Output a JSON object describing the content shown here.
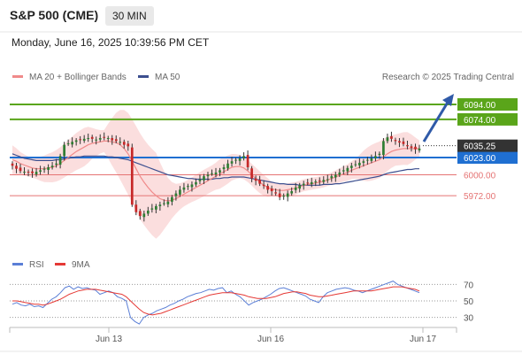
{
  "header": {
    "title": "S&P 500 (CME)",
    "interval": "30 MIN",
    "datetime": "Monday, June 16, 2025 10:39:56 PM CET"
  },
  "source": "Research © 2025 Trading Central",
  "colors": {
    "up_candle": "#2e7d32",
    "down_candle": "#c62828",
    "target_level": "#5aa51a",
    "pivot_level": "#1f6fd1",
    "support_level": "#e57373",
    "current_price_bg": "#333333",
    "ma20_bollinger": "#f08a8a",
    "ma50": "#3c4f8f",
    "rsi": "#5b7fd6",
    "rsi_ma": "#e53935",
    "arrow": "#2f5aa8"
  },
  "chart_data": [
    {
      "type": "candlestick",
      "legend": [
        {
          "name": "MA 20 + Bollinger Bands",
          "color": "#f08a8a"
        },
        {
          "name": "MA 50",
          "color": "#3c4f8f"
        }
      ],
      "legend_position": "top-left",
      "ylim": [
        5900,
        6120
      ],
      "x_ticks": [
        "Jun 13",
        "Jun 16",
        "Jun 17"
      ],
      "levels": [
        {
          "value": 6094.0,
          "label": "6094.00",
          "kind": "target"
        },
        {
          "value": 6074.0,
          "label": "6074.00",
          "kind": "target"
        },
        {
          "value": 6023.0,
          "label": "6023.00",
          "kind": "pivot"
        },
        {
          "value": 6000.0,
          "label": "6000.00",
          "kind": "support"
        },
        {
          "value": 5972.0,
          "label": "5972.00",
          "kind": "support"
        }
      ],
      "current_price": {
        "value": 6035.25,
        "label": "6035.25"
      },
      "close_series": [
        6012,
        6008,
        6005,
        6004,
        6003,
        6002,
        6004,
        6006,
        6008,
        6010,
        6012,
        6015,
        6025,
        6040,
        6042,
        6044,
        6046,
        6047,
        6048,
        6049,
        6048,
        6047,
        6049,
        6050,
        6049,
        6046,
        6045,
        6044,
        6040,
        6038,
        5960,
        5950,
        5945,
        5948,
        5952,
        5955,
        5958,
        5960,
        5962,
        5964,
        5970,
        5975,
        5980,
        5983,
        5985,
        5987,
        5990,
        5994,
        5998,
        6000,
        6002,
        6003,
        6006,
        6010,
        6015,
        6018,
        6020,
        6022,
        6025,
        6010,
        5995,
        5992,
        5988,
        5985,
        5980,
        5978,
        5975,
        5970,
        5972,
        5975,
        5978,
        5983,
        5986,
        5988,
        5989,
        5990,
        5991,
        5992,
        5993,
        5994,
        5998,
        6000,
        6003,
        6006,
        6009,
        6012,
        6014,
        6016,
        6018,
        6020,
        6022,
        6025,
        6028,
        6045,
        6050,
        6048,
        6045,
        6043,
        6041,
        6038,
        6036,
        6034,
        6035
      ],
      "ma20_series": [
        6020,
        6018,
        6015,
        6013,
        6011,
        6009,
        6008,
        6008,
        6008,
        6009,
        6010,
        6012,
        6015,
        6019,
        6023,
        6027,
        6031,
        6034,
        6037,
        6040,
        6042,
        6043,
        6044,
        6045,
        6045,
        6044,
        6043,
        6040,
        6035,
        6028,
        6018,
        6008,
        5998,
        5990,
        5983,
        5977,
        5972,
        5968,
        5966,
        5965,
        5966,
        5968,
        5971,
        5974,
        5977,
        5980,
        5983,
        5986,
        5989,
        5992,
        5995,
        5998,
        6001,
        6004,
        6007,
        6010,
        6011,
        6011,
        6009,
        6005,
        6000,
        5995,
        5990,
        5986,
        5983,
        5981,
        5980,
        5979,
        5979,
        5980,
        5981,
        5982,
        5984,
        5986,
        5987,
        5988,
        5989,
        5990,
        5991,
        5993,
        5995,
        5997,
        5999,
        6001,
        6003,
        6006,
        6008,
        6010,
        6012,
        6014,
        6016,
        6018,
        6020,
        6024,
        6028,
        6031,
        6033,
        6034,
        6035,
        6035,
        6035,
        6035,
        6035
      ],
      "ma50_series": [
        6028,
        6026,
        6024,
        6022,
        6021,
        6020,
        6019,
        6019,
        6019,
        6019,
        6019,
        6020,
        6020,
        6021,
        6022,
        6023,
        6024,
        6024,
        6025,
        6025,
        6025,
        6025,
        6025,
        6025,
        6024,
        6024,
        6023,
        6022,
        6021,
        6020,
        6018,
        6016,
        6014,
        6012,
        6010,
        6008,
        6006,
        6004,
        6002,
        6000,
        5999,
        5998,
        5997,
        5996,
        5995,
        5995,
        5994,
        5994,
        5994,
        5994,
        5994,
        5995,
        5995,
        5996,
        5996,
        5997,
        5997,
        5997,
        5997,
        5996,
        5995,
        5994,
        5993,
        5992,
        5991,
        5990,
        5989,
        5988,
        5988,
        5987,
        5987,
        5987,
        5986,
        5986,
        5986,
        5986,
        5986,
        5986,
        5987,
        5987,
        5987,
        5988,
        5988,
        5989,
        5990,
        5991,
        5992,
        5993,
        5994,
        5995,
        5996,
        5997,
        5998,
        6000,
        6002,
        6003,
        6004,
        6005,
        6006,
        6007,
        6007,
        6008,
        6008
      ]
    },
    {
      "type": "line",
      "legend": [
        {
          "name": "RSI",
          "color": "#5b7fd6"
        },
        {
          "name": "9MA",
          "color": "#e53935"
        }
      ],
      "ylim": [
        20,
        80
      ],
      "y_ticks": [
        "70",
        "50",
        "30"
      ],
      "levels": [
        70,
        50,
        30
      ],
      "series": [
        {
          "name": "RSI",
          "values": [
            46,
            48,
            45,
            44,
            46,
            43,
            44,
            42,
            47,
            52,
            55,
            60,
            66,
            68,
            64,
            67,
            65,
            66,
            64,
            63,
            58,
            60,
            62,
            60,
            55,
            53,
            50,
            30,
            25,
            22,
            30,
            33,
            35,
            38,
            40,
            42,
            45,
            47,
            50,
            52,
            55,
            57,
            59,
            60,
            62,
            64,
            63,
            65,
            66,
            60,
            62,
            58,
            55,
            50,
            45,
            48,
            50,
            52,
            55,
            58,
            62,
            65,
            66,
            64,
            62,
            60,
            58,
            56,
            52,
            50,
            48,
            55,
            60,
            62,
            64,
            65,
            66,
            65,
            63,
            62,
            60,
            62,
            64,
            66,
            68,
            70,
            72,
            74,
            70,
            68,
            66,
            64,
            62,
            60
          ]
        },
        {
          "name": "9MA",
          "values": [
            50,
            50,
            49,
            48,
            47,
            46,
            46,
            45,
            46,
            48,
            50,
            52,
            55,
            58,
            60,
            62,
            63,
            64,
            64,
            64,
            63,
            62,
            61,
            60,
            59,
            58,
            55,
            50,
            45,
            40,
            36,
            34,
            33,
            34,
            35,
            37,
            39,
            41,
            43,
            45,
            47,
            49,
            51,
            53,
            55,
            57,
            58,
            59,
            60,
            60,
            60,
            59,
            58,
            57,
            55,
            54,
            53,
            53,
            53,
            54,
            55,
            57,
            59,
            60,
            61,
            61,
            60,
            59,
            57,
            56,
            55,
            55,
            56,
            57,
            58,
            59,
            60,
            61,
            62,
            62,
            62,
            62,
            62,
            63,
            64,
            65,
            66,
            67,
            67,
            67,
            66,
            65,
            64,
            62
          ]
        }
      ]
    }
  ]
}
